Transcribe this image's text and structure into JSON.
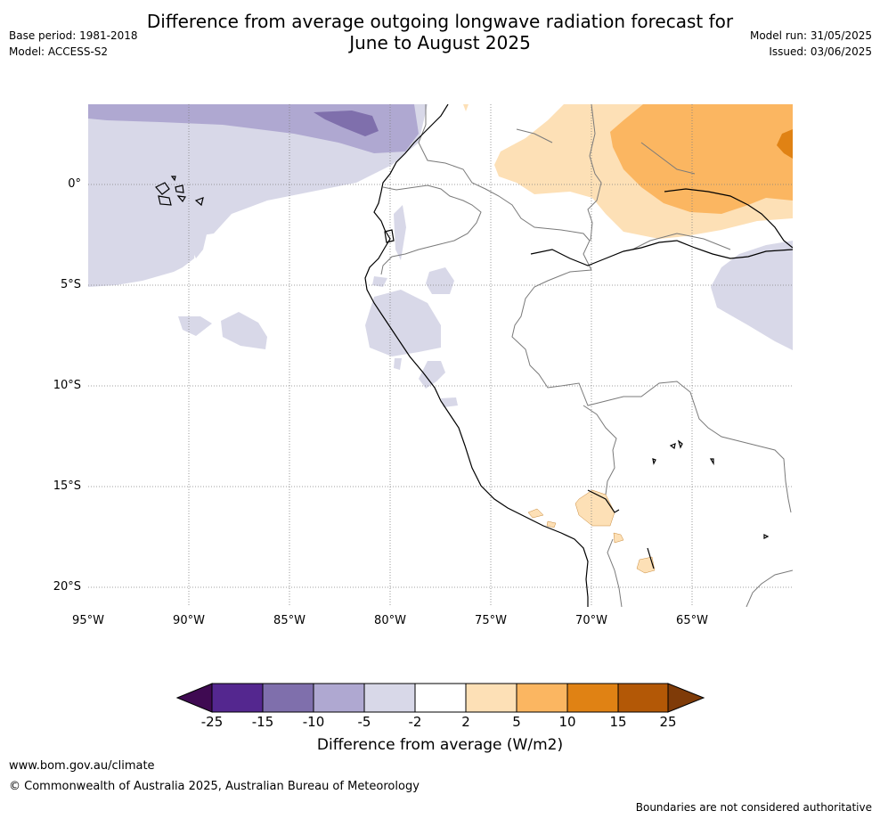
{
  "title_line1": "Difference from average outgoing longwave radiation forecast for",
  "title_line2": "June to August 2025",
  "base_period": "Base period: 1981-2018",
  "model": "Model: ACCESS-S2",
  "model_run": "Model run: 31/05/2025",
  "issued": "Issued: 03/06/2025",
  "map": {
    "lat_labels": [
      "0°",
      "5°S",
      "10°S",
      "15°S",
      "20°S"
    ],
    "lon_labels": [
      "95°W",
      "90°W",
      "85°W",
      "80°W",
      "75°W",
      "70°W",
      "65°W"
    ]
  },
  "colorbar": {
    "ticks": [
      "-25",
      "-15",
      "-10",
      "-5",
      "-2",
      "2",
      "5",
      "10",
      "15",
      "25"
    ],
    "colors": [
      "#3f0a52",
      "#54278f",
      "#7f6fac",
      "#afa8d1",
      "#d8d8e8",
      "#ffffff",
      "#fde0b6",
      "#fbb661",
      "#e08214",
      "#b35806",
      "#7f3b08"
    ],
    "label": "Difference from average (W/m2)"
  },
  "footer": {
    "url": "www.bom.gov.au/climate",
    "copyright": "© Commonwealth of Australia 2025, Australian Bureau of Meteorology",
    "disclaimer": "Boundaries are not considered authoritative"
  }
}
